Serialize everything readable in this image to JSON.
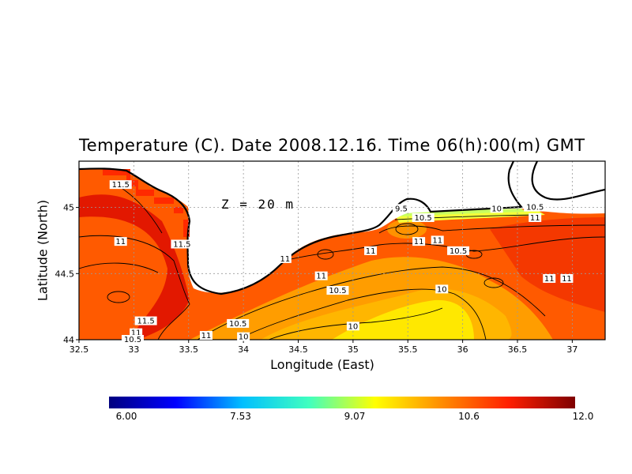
{
  "chart_data": {
    "type": "heatmap",
    "title": "Temperature (C). Date 2008.12.16. Time 06(h):00(m) GMT",
    "xlabel": "Longitude (East)",
    "ylabel": "Latitude (North)",
    "depth_label": "Z = 20 m",
    "xlim": [
      32.5,
      37.3
    ],
    "ylim": [
      44.0,
      45.35
    ],
    "x_ticks": [
      "32.5",
      "33",
      "33.5",
      "34",
      "34.5",
      "35",
      "35.5",
      "36",
      "36.5",
      "37"
    ],
    "y_ticks": [
      "44",
      "44.5",
      "45"
    ],
    "grid": "dotted",
    "colorbar": {
      "min": 6.0,
      "max": 12.0,
      "tick_labels": [
        "6.00",
        "7.53",
        "9.07",
        "10.6",
        "12.0"
      ],
      "colors": [
        "#00007f",
        "#0000ff",
        "#00bfff",
        "#40ffbf",
        "#ffff00",
        "#ff8c00",
        "#ff2000",
        "#7f0000"
      ]
    },
    "contour_labels": [
      {
        "text": "11.5",
        "x": 32.88,
        "y": 45.17
      },
      {
        "text": "11",
        "x": 32.88,
        "y": 44.74
      },
      {
        "text": "11.5",
        "x": 33.44,
        "y": 44.72
      },
      {
        "text": "11.5",
        "x": 33.11,
        "y": 44.14
      },
      {
        "text": "11",
        "x": 33.02,
        "y": 44.05
      },
      {
        "text": "10.5",
        "x": 32.99,
        "y": 44.0
      },
      {
        "text": "11",
        "x": 33.66,
        "y": 44.03
      },
      {
        "text": "10.5",
        "x": 33.95,
        "y": 44.12
      },
      {
        "text": "10",
        "x": 34.0,
        "y": 44.02
      },
      {
        "text": "11",
        "x": 34.38,
        "y": 44.61
      },
      {
        "text": "11",
        "x": 34.71,
        "y": 44.48
      },
      {
        "text": "10.5",
        "x": 34.86,
        "y": 44.37
      },
      {
        "text": "10",
        "x": 35.0,
        "y": 44.1
      },
      {
        "text": "11",
        "x": 35.16,
        "y": 44.67
      },
      {
        "text": "11",
        "x": 35.6,
        "y": 44.74
      },
      {
        "text": "11",
        "x": 35.77,
        "y": 44.75
      },
      {
        "text": "10.5",
        "x": 35.96,
        "y": 44.67
      },
      {
        "text": "10.5",
        "x": 35.64,
        "y": 44.92
      },
      {
        "text": "9.5",
        "x": 35.44,
        "y": 44.99
      },
      {
        "text": "10",
        "x": 35.81,
        "y": 44.38
      },
      {
        "text": "10",
        "x": 36.31,
        "y": 44.99
      },
      {
        "text": "10.5",
        "x": 36.66,
        "y": 45.0
      },
      {
        "text": "11",
        "x": 36.66,
        "y": 44.92
      },
      {
        "text": "11",
        "x": 36.79,
        "y": 44.46
      },
      {
        "text": "11",
        "x": 36.95,
        "y": 44.46
      }
    ]
  }
}
